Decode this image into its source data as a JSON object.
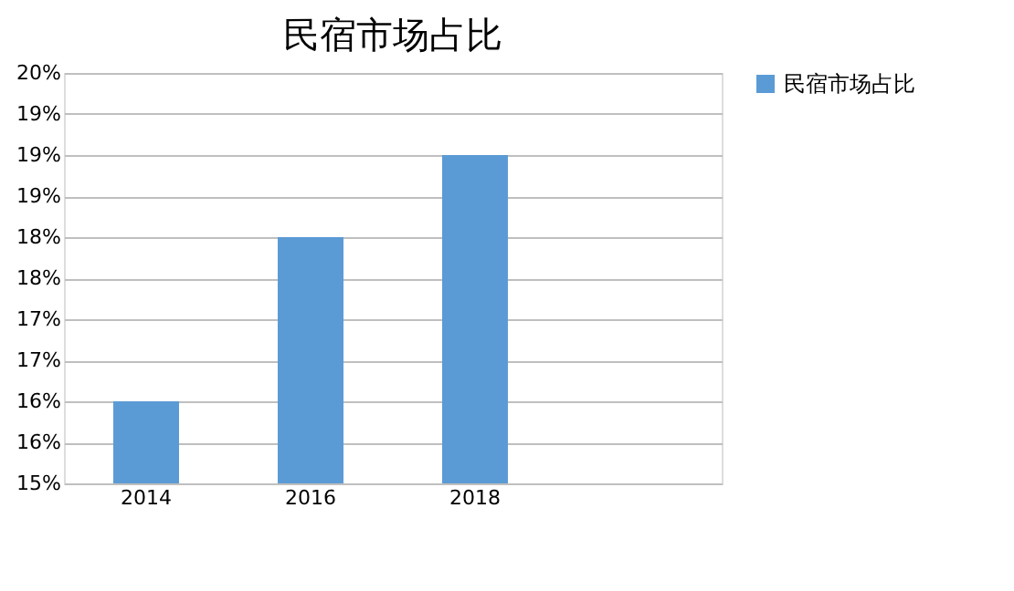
{
  "chart_data": {
    "type": "bar",
    "title": "民宿市场占比",
    "categories": [
      "2014",
      "2016",
      "2018",
      null
    ],
    "series": [
      {
        "name": "民宿市场占比",
        "color": "#5b9bd5",
        "values": [
          16,
          18,
          19,
          null
        ]
      }
    ],
    "ylim": [
      15,
      20
    ],
    "yticks": [
      {
        "value": 15,
        "label": "15%"
      },
      {
        "value": 15.5,
        "label": "16%"
      },
      {
        "value": 16,
        "label": "16%"
      },
      {
        "value": 16.5,
        "label": "17%"
      },
      {
        "value": 17,
        "label": "17%"
      },
      {
        "value": 17.5,
        "label": "18%"
      },
      {
        "value": 18,
        "label": "18%"
      },
      {
        "value": 18.5,
        "label": "19%"
      },
      {
        "value": 19,
        "label": "19%"
      },
      {
        "value": 19.5,
        "label": "19%"
      },
      {
        "value": 20,
        "label": "20%"
      }
    ],
    "grid": "y",
    "legend": "right"
  }
}
